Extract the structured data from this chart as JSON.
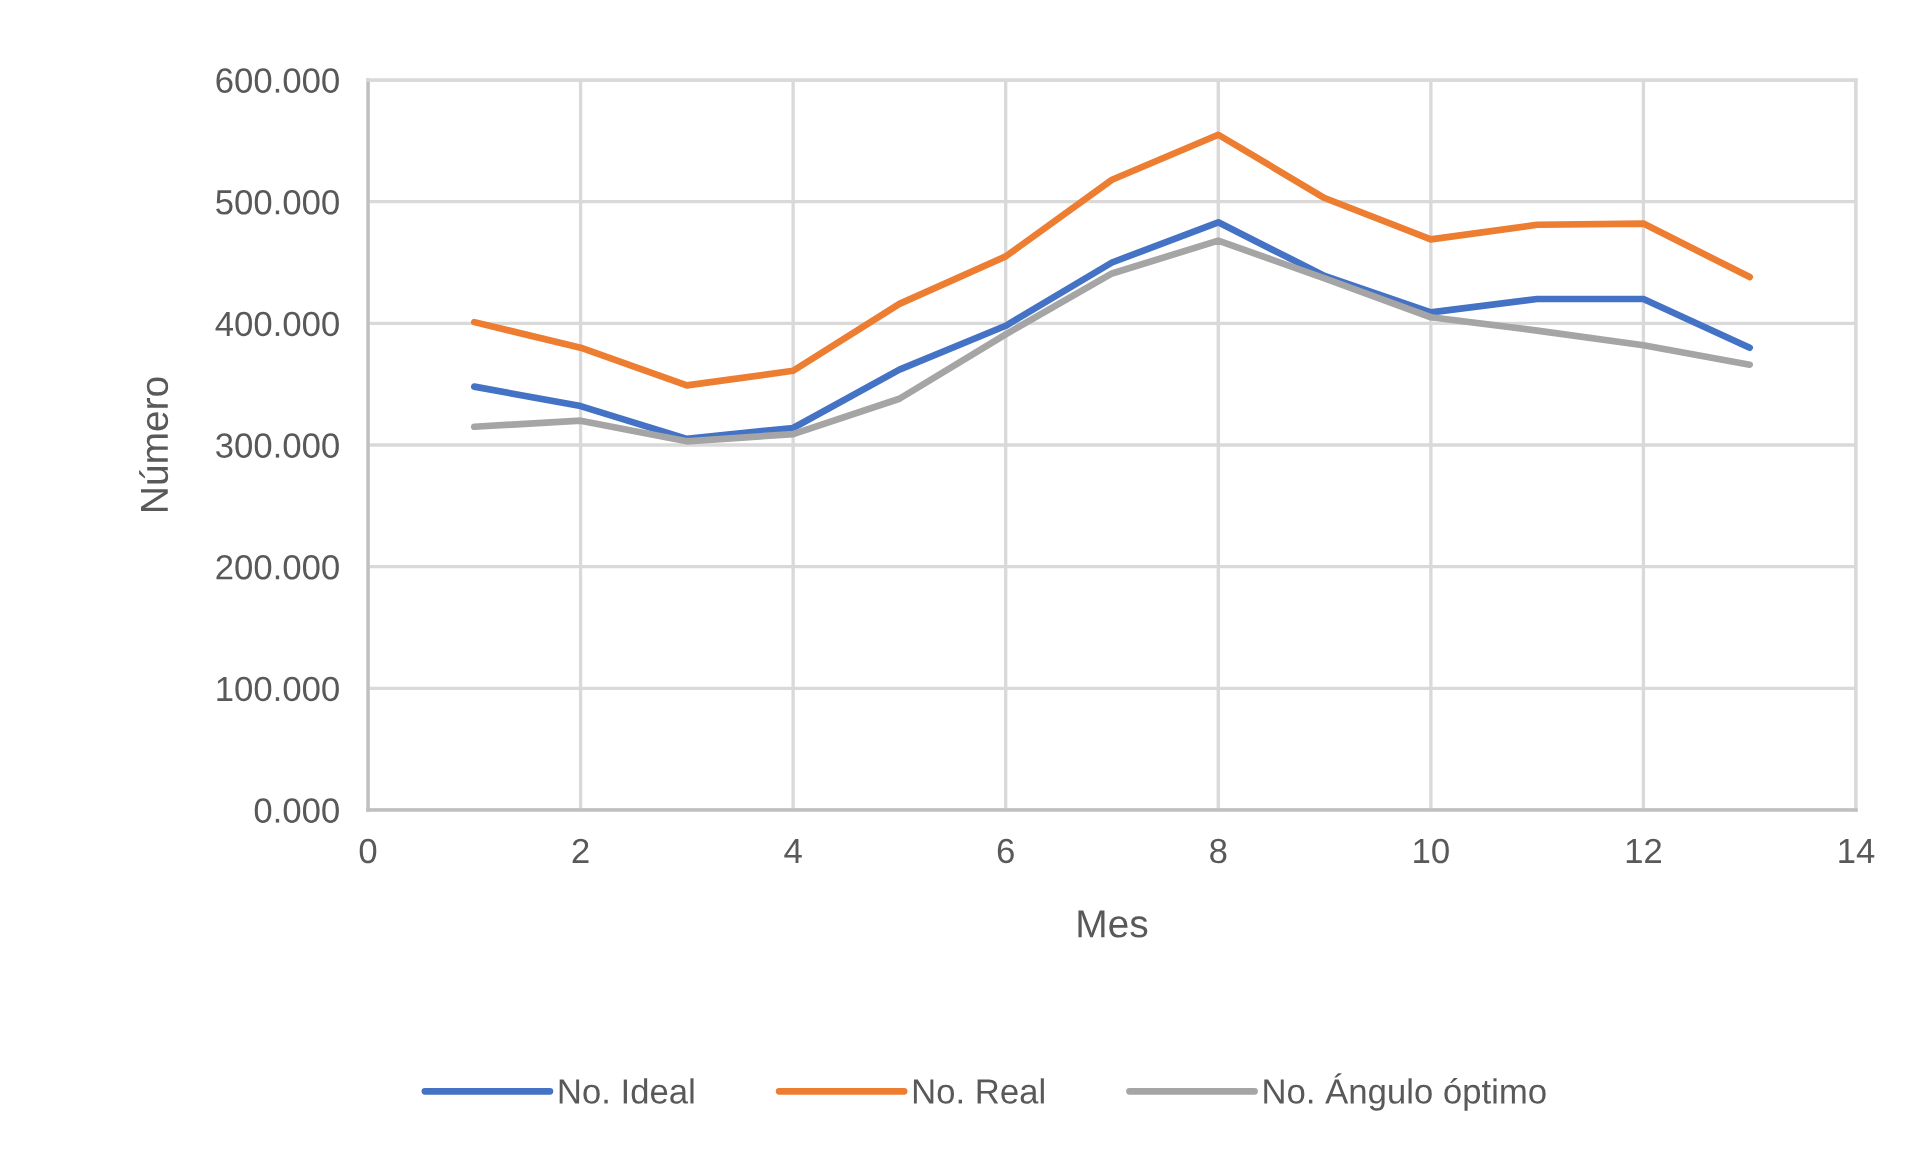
{
  "chart_data": {
    "type": "line",
    "xlabel": "Mes",
    "ylabel": "Número",
    "series": [
      {
        "name": "No. Ideal",
        "color": "#4472c4",
        "x": [
          1,
          2,
          3,
          4,
          5,
          6,
          7,
          8,
          9,
          10,
          11,
          12,
          13
        ],
        "values": [
          348,
          332,
          305,
          314,
          362,
          398,
          450,
          483,
          439,
          409,
          420,
          420,
          380
        ]
      },
      {
        "name": "No. Real",
        "color": "#ed7d31",
        "x": [
          1,
          2,
          3,
          4,
          5,
          6,
          7,
          8,
          9,
          10,
          11,
          12,
          13
        ],
        "values": [
          401,
          380,
          349,
          361,
          416,
          455,
          518,
          555,
          503,
          469,
          481,
          482,
          438
        ]
      },
      {
        "name": "No. Ángulo óptimo",
        "color": "#a5a5a5",
        "x": [
          1,
          2,
          3,
          4,
          5,
          6,
          7,
          8,
          9,
          10,
          11,
          12,
          13
        ],
        "values": [
          315,
          320,
          303,
          309,
          338,
          391,
          441,
          468,
          437,
          405,
          394,
          382,
          366
        ]
      }
    ],
    "xlim": [
      0,
      14
    ],
    "xticks": [
      0,
      2,
      4,
      6,
      8,
      10,
      12,
      14
    ],
    "ylim": [
      0,
      600
    ],
    "yticks": [
      {
        "value": 0,
        "label": "0.000"
      },
      {
        "value": 100,
        "label": "100.000"
      },
      {
        "value": 200,
        "label": "200.000"
      },
      {
        "value": 300,
        "label": "300.000"
      },
      {
        "value": 400,
        "label": "400.000"
      },
      {
        "value": 500,
        "label": "500.000"
      },
      {
        "value": 600,
        "label": "600.000"
      }
    ],
    "grid": true,
    "legend": "bottom",
    "marker": "none",
    "line_style": "solid"
  }
}
